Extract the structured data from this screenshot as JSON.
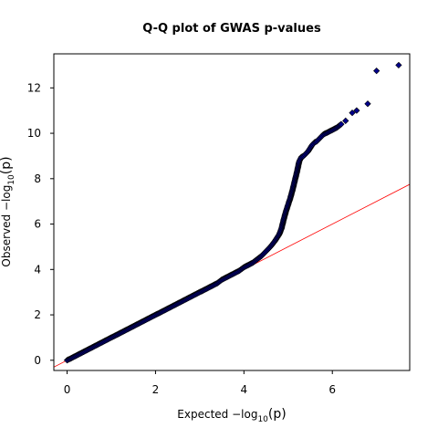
{
  "chart_data": {
    "type": "scatter",
    "title": "Q-Q plot of GWAS p-values",
    "xlabel_prefix": "Expected  −log",
    "ylabel_prefix": "Observed  −log",
    "log_base": "10",
    "log_arg": "(p)",
    "xlim": [
      -0.3,
      7.75
    ],
    "ylim": [
      -0.45,
      13.5
    ],
    "xticks": [
      0,
      2,
      4,
      6
    ],
    "yticks": [
      0,
      2,
      4,
      6,
      8,
      10,
      12
    ],
    "grid": false,
    "reference_line": {
      "slope": 1,
      "intercept": 0,
      "color": "#ff0000"
    },
    "point_fill": "#00008b",
    "point_stroke": "#000000",
    "series": [
      {
        "x": [
          0.0,
          0.05,
          0.1,
          0.2,
          0.3,
          0.4,
          0.5,
          0.6,
          0.7,
          0.8,
          0.9,
          1.0,
          1.1,
          1.2,
          1.3,
          1.4,
          1.5,
          1.6,
          1.7,
          1.8,
          1.9,
          2.0,
          2.1,
          2.2,
          2.3,
          2.4,
          2.5,
          2.6,
          2.7,
          2.8,
          2.9,
          3.0,
          3.1,
          3.2,
          3.3,
          3.4,
          3.5,
          3.6,
          3.7,
          3.8,
          3.9,
          4.0,
          4.1,
          4.2,
          4.3,
          4.4,
          4.5,
          4.6,
          4.7,
          4.8,
          4.85,
          4.9,
          4.95,
          5.0,
          5.05,
          5.1,
          5.15,
          5.2,
          5.25,
          5.3,
          5.35,
          5.4,
          5.45,
          5.5,
          5.55,
          5.6,
          5.65,
          5.7,
          5.75,
          5.8,
          5.85,
          5.9,
          5.95,
          6.0,
          6.05,
          6.1,
          6.2,
          6.3,
          6.45,
          6.55,
          6.8,
          7.0,
          7.5
        ],
        "y": [
          0.0,
          0.05,
          0.1,
          0.2,
          0.3,
          0.4,
          0.5,
          0.6,
          0.7,
          0.8,
          0.9,
          1.0,
          1.1,
          1.2,
          1.3,
          1.4,
          1.5,
          1.6,
          1.7,
          1.8,
          1.9,
          2.0,
          2.1,
          2.2,
          2.3,
          2.4,
          2.5,
          2.6,
          2.7,
          2.8,
          2.9,
          3.0,
          3.1,
          3.2,
          3.3,
          3.4,
          3.55,
          3.65,
          3.75,
          3.85,
          3.95,
          4.1,
          4.2,
          4.3,
          4.45,
          4.6,
          4.8,
          5.0,
          5.25,
          5.55,
          5.8,
          6.2,
          6.55,
          6.85,
          7.15,
          7.5,
          7.9,
          8.3,
          8.75,
          8.95,
          9.0,
          9.1,
          9.2,
          9.35,
          9.5,
          9.6,
          9.65,
          9.75,
          9.85,
          9.95,
          10.0,
          10.05,
          10.1,
          10.15,
          10.2,
          10.25,
          10.4,
          10.55,
          10.9,
          11.0,
          11.3,
          12.75,
          13.0
        ]
      }
    ]
  }
}
